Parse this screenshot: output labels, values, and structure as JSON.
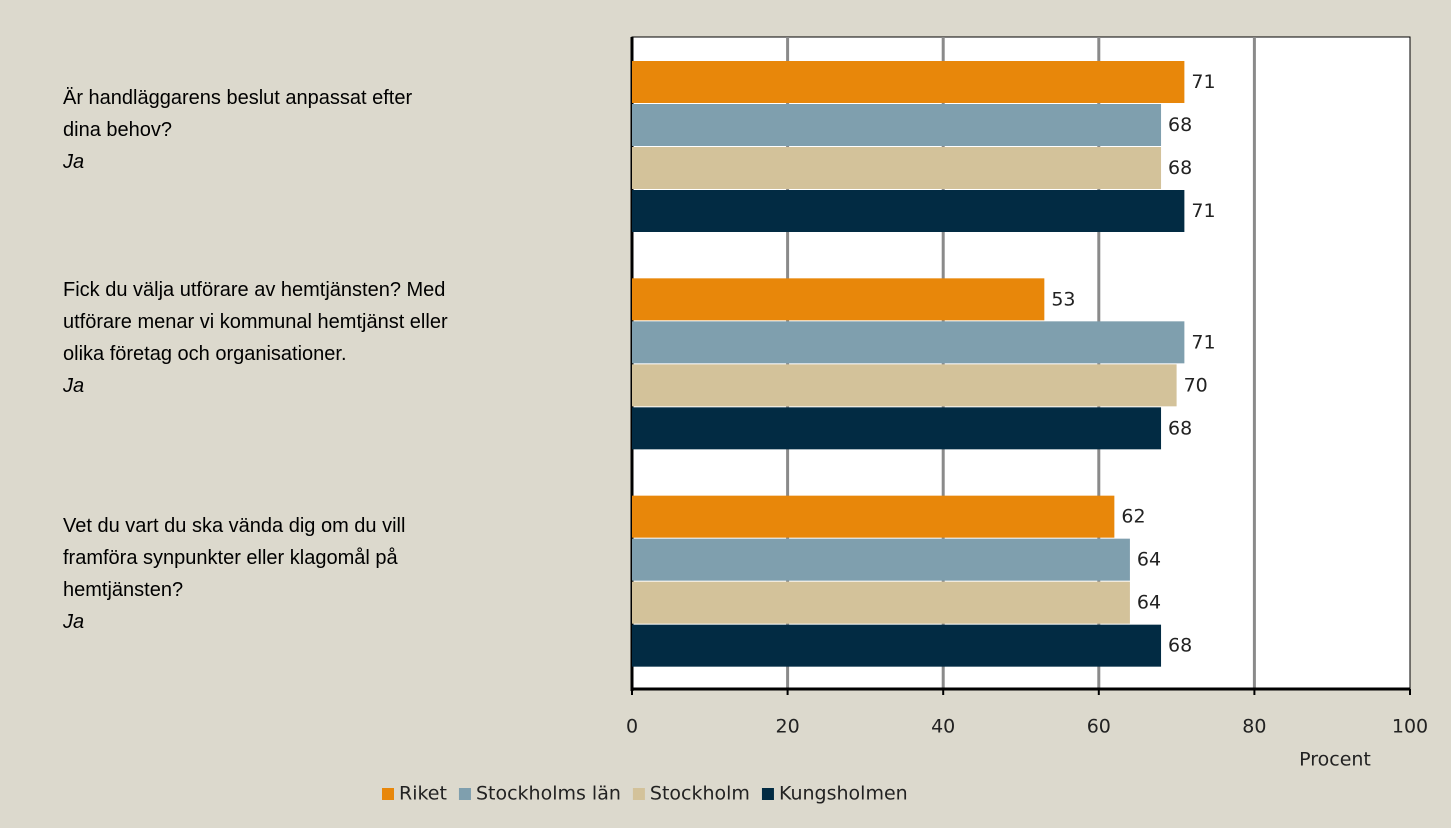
{
  "chart_data": {
    "type": "hbar",
    "categories": [
      [
        "Är handläggarens beslut anpassat efter",
        "dina behov?"
      ],
      [
        "Fick du välja utförare av hemtjänsten? Med",
        "utförare menar vi kommunal hemtjänst eller",
        "olika företag och organisationer."
      ],
      [
        "Vet du vart du ska vända dig om du vill",
        "framföra synpunkter eller klagomål på",
        "hemtjänsten?"
      ]
    ],
    "category_sublabels": [
      "Ja",
      "Ja",
      "Ja"
    ],
    "series": [
      {
        "name": "Riket",
        "color": "#e8870a",
        "values": [
          71,
          53,
          62
        ]
      },
      {
        "name": "Stockholms län",
        "color": "#7f9fae",
        "values": [
          68,
          71,
          64
        ]
      },
      {
        "name": "Stockholm",
        "color": "#d3c29a",
        "values": [
          68,
          70,
          64
        ]
      },
      {
        "name": "Kungsholmen",
        "color": "#022b43",
        "values": [
          71,
          68,
          68
        ]
      }
    ],
    "xlabel": "Procent",
    "xlim": [
      0,
      100
    ],
    "xticks": [
      0,
      20,
      40,
      60,
      80,
      100
    ],
    "grid": true,
    "legend": "bottom"
  }
}
